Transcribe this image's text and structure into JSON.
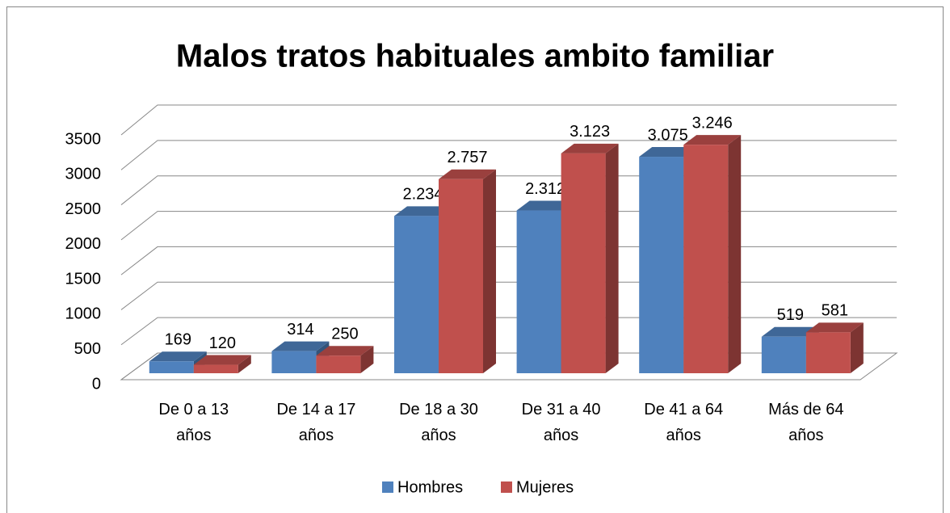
{
  "chart_data": {
    "type": "bar3d",
    "title": "Malos tratos habituales ambito familiar",
    "categories": [
      "De 0 a 13 años",
      "De 14 a 17 años",
      "De 18 a 30 años",
      "De 31 a 40 años",
      "De 41 a 64 años",
      "Más de 64 años"
    ],
    "series": [
      {
        "name": "Hombres",
        "color": "#4f81bd",
        "values": [
          169,
          314,
          2234,
          2312,
          3075,
          519
        ],
        "value_labels": [
          "169",
          "314",
          "2.234",
          "2.312",
          "3.075",
          "519"
        ]
      },
      {
        "name": "Mujeres",
        "color": "#c0504d",
        "values": [
          120,
          250,
          2757,
          3123,
          3246,
          581
        ],
        "value_labels": [
          "120",
          "250",
          "2.757",
          "3.123",
          "3.246",
          "581"
        ]
      }
    ],
    "ylim": [
      0,
      3500
    ],
    "yticks": [
      0,
      500,
      1000,
      1500,
      2000,
      2500,
      3000,
      3500
    ],
    "grid": true,
    "legend": "bottom"
  }
}
